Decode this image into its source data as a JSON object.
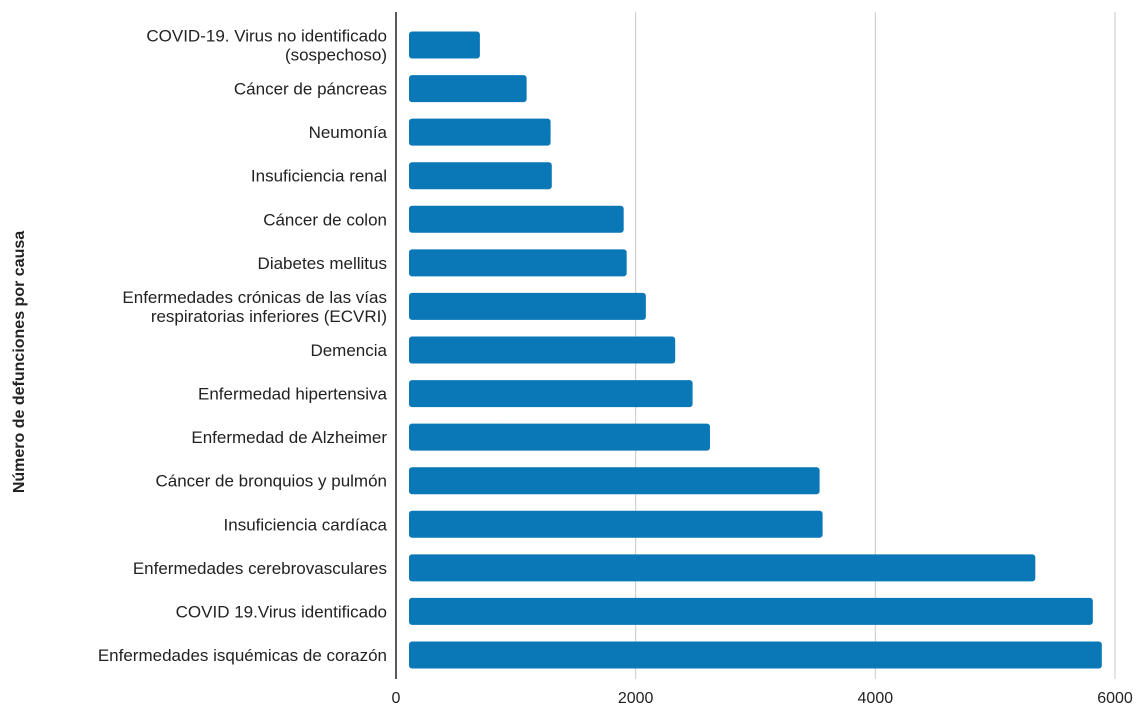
{
  "chart_data": {
    "type": "bar",
    "orientation": "horizontal",
    "ylabel": "Número de defunciones por causa",
    "xlabel": "",
    "xlim": [
      0,
      6000
    ],
    "xticks": [
      "0",
      "2000",
      "4000",
      "6000"
    ],
    "xtick_values": [
      0,
      2000,
      4000,
      6000
    ],
    "grid": true,
    "bar_color": "#0a77b6",
    "categories": [
      "COVID-19. Virus no identificado (sospechoso)",
      "Cáncer de páncreas",
      "Neumonía",
      "Insuficiencia renal",
      "Cáncer de colon",
      "Diabetes mellitus",
      "Enfermedades crónicas de las vías respiratorias inferiores (ECVRI)",
      "Demencia",
      "Enfermedad hipertensiva",
      "Enfermedad de Alzheimer",
      "Cáncer de bronquios y pulmón",
      "Insuficiencia cardíaca",
      "Enfermedades cerebrovasculares",
      "COVID 19.Virus identificado",
      "Enfermedades isquémicas de corazón"
    ],
    "category_label_lines": [
      [
        "COVID-19. Virus no identificado",
        "(sospechoso)"
      ],
      [
        "Cáncer de páncreas"
      ],
      [
        "Neumonía"
      ],
      [
        "Insuficiencia renal"
      ],
      [
        "Cáncer de colon"
      ],
      [
        "Diabetes mellitus"
      ],
      [
        "Enfermedades crónicas de las vías",
        "respiratorias inferiores (ECVRI)"
      ],
      [
        "Demencia"
      ],
      [
        "Enfermedad hipertensiva"
      ],
      [
        "Enfermedad de Alzheimer"
      ],
      [
        "Cáncer de bronquios y pulmón"
      ],
      [
        "Insuficiencia cardíaca"
      ],
      [
        "Enfermedades cerebrovasculares"
      ],
      [
        "COVID 19.Virus identificado"
      ],
      [
        "Enfermedades isquémicas de corazón"
      ]
    ],
    "values": [
      700,
      1090,
      1290,
      1300,
      1900,
      1925,
      2085,
      2330,
      2475,
      2620,
      3535,
      3560,
      5335,
      5815,
      5890
    ]
  }
}
